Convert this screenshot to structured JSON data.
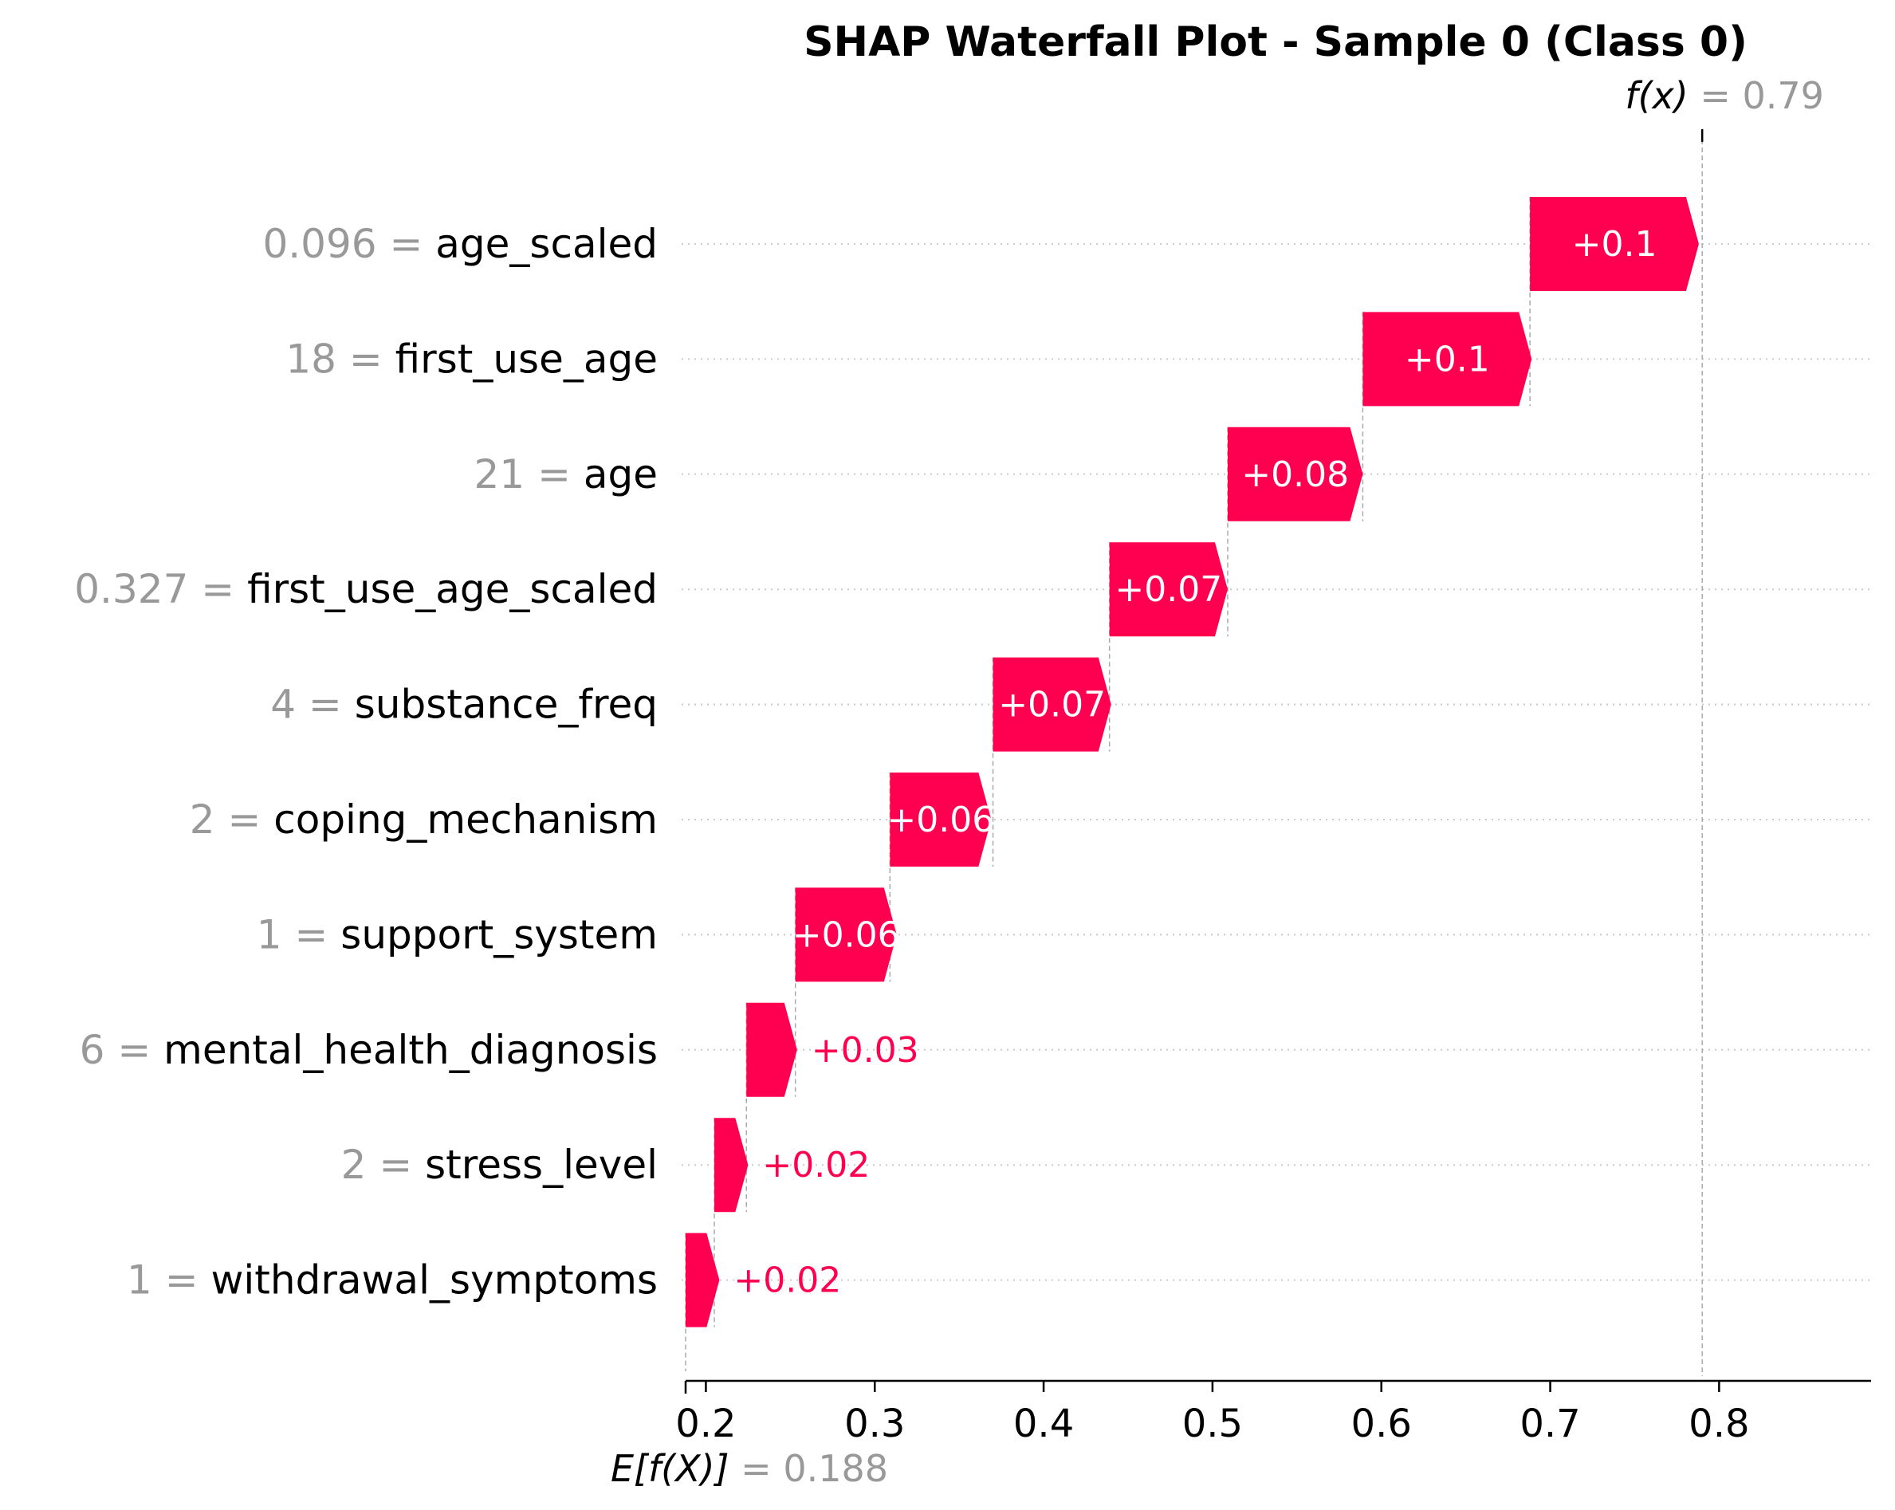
{
  "chart_data": {
    "type": "waterfall",
    "title": "SHAP Waterfall Plot - Sample 0 (Class 0)",
    "base_value": 0.188,
    "base_value_label": "0.188",
    "base_label_prefix": "E[f(X)]",
    "output_value": 0.79,
    "output_value_label": "0.79",
    "output_label_prefix": "f(x)",
    "xlim": [
      0.188,
      0.89
    ],
    "xticks": [
      0.2,
      0.3,
      0.4,
      0.5,
      0.6,
      0.7,
      0.8
    ],
    "xtick_labels": [
      "0.2",
      "0.3",
      "0.4",
      "0.5",
      "0.6",
      "0.7",
      "0.8"
    ],
    "features": [
      {
        "feature": "age_scaled",
        "value": "0.096",
        "shap": 0.1,
        "label": "+0.1",
        "start": 0.688
      },
      {
        "feature": "first_use_age",
        "value": "18",
        "shap": 0.1,
        "label": "+0.1",
        "start": 0.589
      },
      {
        "feature": "age",
        "value": "21",
        "shap": 0.08,
        "label": "+0.08",
        "start": 0.509
      },
      {
        "feature": "first_use_age_scaled",
        "value": "0.327",
        "shap": 0.07,
        "label": "+0.07",
        "start": 0.439
      },
      {
        "feature": "substance_freq",
        "value": "4",
        "shap": 0.07,
        "label": "+0.07",
        "start": 0.37
      },
      {
        "feature": "coping_mechanism",
        "value": "2",
        "shap": 0.06,
        "label": "+0.06",
        "start": 0.309
      },
      {
        "feature": "support_system",
        "value": "1",
        "shap": 0.06,
        "label": "+0.06",
        "start": 0.253
      },
      {
        "feature": "mental_health_diagnosis",
        "value": "6",
        "shap": 0.03,
        "label": "+0.03",
        "start": 0.224
      },
      {
        "feature": "stress_level",
        "value": "2",
        "shap": 0.02,
        "label": "+0.02",
        "start": 0.205
      },
      {
        "feature": "withdrawal_symptoms",
        "value": "1",
        "shap": 0.02,
        "label": "+0.02",
        "start": 0.188
      }
    ],
    "colors": {
      "positive": "#ff0051",
      "feature_value": "#999999",
      "feature_name": "#000000",
      "gridline": "#cccccc"
    }
  }
}
